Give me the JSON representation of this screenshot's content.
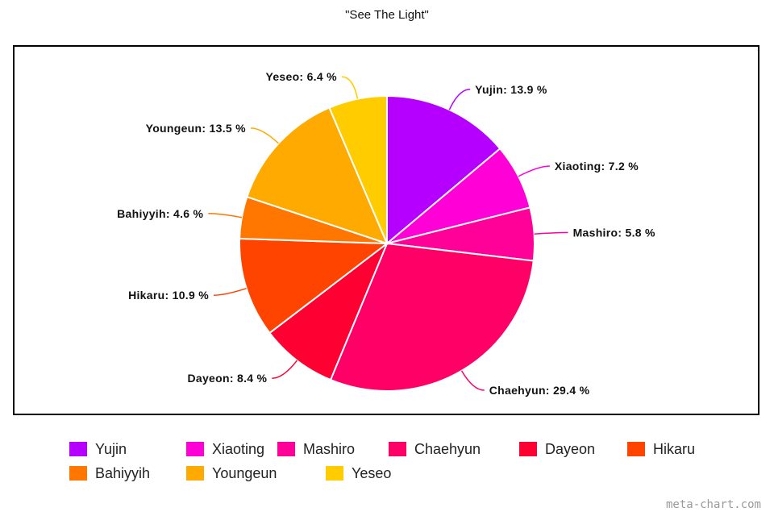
{
  "chart_data": {
    "type": "pie",
    "title": "\"See The Light\"",
    "slices": [
      {
        "name": "Yujin",
        "value": 13.9,
        "label": "Yujin: 13.9 %",
        "color": "#b600ff"
      },
      {
        "name": "Xiaoting",
        "value": 7.2,
        "label": "Xiaoting: 7.2 %",
        "color": "#ff00d6"
      },
      {
        "name": "Mashiro",
        "value": 5.8,
        "label": "Mashiro: 5.8 %",
        "color": "#ff0099"
      },
      {
        "name": "Chaehyun",
        "value": 29.4,
        "label": "Chaehyun: 29.4 %",
        "color": "#ff0066"
      },
      {
        "name": "Dayeon",
        "value": 8.4,
        "label": "Dayeon: 8.4 %",
        "color": "#ff0033"
      },
      {
        "name": "Hikaru",
        "value": 10.9,
        "label": "Hikaru: 10.9 %",
        "color": "#ff4400"
      },
      {
        "name": "Bahiyyih",
        "value": 4.6,
        "label": "Bahiyyih: 4.6 %",
        "color": "#ff7700"
      },
      {
        "name": "Youngeun",
        "value": 13.5,
        "label": "Youngeun: 13.5 %",
        "color": "#ffaa00"
      },
      {
        "name": "Yeseo",
        "value": 6.4,
        "label": "Yeseo: 6.4 %",
        "color": "#ffcc00"
      }
    ],
    "legend_position": "bottom"
  },
  "watermark": "meta-chart.com"
}
